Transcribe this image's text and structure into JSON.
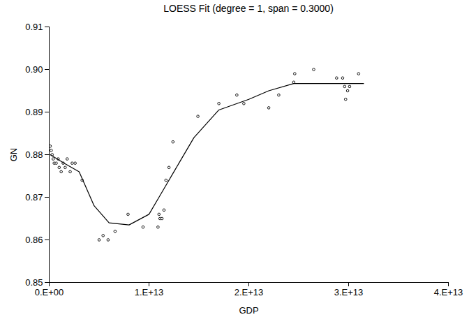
{
  "chart_data": {
    "type": "scatter",
    "title": "LOESS Fit (degree = 1, span = 0.3000)",
    "x_label": "GDP",
    "y_label": "GN",
    "xlim": [
      0,
      40000000000000
    ],
    "xticks": [
      {
        "value": 0,
        "label": "0.E+00"
      },
      {
        "value": 10000000000000,
        "label": "1.E+13"
      },
      {
        "value": 20000000000000,
        "label": "2.E+13"
      },
      {
        "value": 30000000000000,
        "label": "3.E+13"
      },
      {
        "value": 40000000000000,
        "label": "4.E+13"
      }
    ],
    "ylim": [
      0.85,
      0.91
    ],
    "yticks": [
      0.85,
      0.86,
      0.87,
      0.88,
      0.89,
      {
        "value": 0.9,
        "label": "0.90"
      },
      0.91
    ],
    "grid": false,
    "series": [
      {
        "type": "scatter",
        "marker": "circle",
        "color": "#000000",
        "x": [
          100000000000,
          200000000000,
          300000000000,
          400000000000,
          500000000000,
          700000000000,
          900000000000,
          1000000000000,
          1200000000000,
          1400000000000,
          1600000000000,
          1800000000000,
          2100000000000,
          2300000000000,
          2600000000000,
          3300000000000,
          5000000000000,
          5400000000000,
          5900000000000,
          6600000000000,
          7900000000000,
          9400000000000,
          10900000000000,
          11000000000000,
          11100000000000,
          11300000000000,
          11500000000000,
          11700000000000,
          12000000000000,
          12400000000000,
          14900000000000,
          17000000000000,
          18800000000000,
          19500000000000,
          22000000000000,
          23000000000000,
          24500000000000,
          24600000000000,
          26500000000000,
          28800000000000,
          29400000000000,
          29600000000000,
          29700000000000,
          29900000000000,
          30100000000000,
          31000000000000
        ],
        "values": [
          0.882,
          0.881,
          0.88,
          0.879,
          0.878,
          0.878,
          0.879,
          0.877,
          0.876,
          0.878,
          0.877,
          0.879,
          0.876,
          0.878,
          0.878,
          0.874,
          0.86,
          0.861,
          0.86,
          0.862,
          0.866,
          0.863,
          0.863,
          0.866,
          0.865,
          0.865,
          0.867,
          0.874,
          0.877,
          0.883,
          0.889,
          0.892,
          0.894,
          0.892,
          0.891,
          0.894,
          0.897,
          0.899,
          0.9,
          0.898,
          0.898,
          0.896,
          0.893,
          0.895,
          0.896,
          0.899
        ]
      },
      {
        "type": "line",
        "line_style": "solid",
        "color": "#000000",
        "x": [
          100000000000,
          1500000000000,
          3000000000000,
          4500000000000,
          6000000000000,
          8000000000000,
          10000000000000,
          11000000000000,
          12500000000000,
          14500000000000,
          17000000000000,
          20000000000000,
          22000000000000,
          24500000000000,
          31500000000000
        ],
        "values": [
          0.88,
          0.878,
          0.876,
          0.868,
          0.864,
          0.8635,
          0.866,
          0.87,
          0.876,
          0.884,
          0.8905,
          0.893,
          0.895,
          0.8967,
          0.8967
        ]
      }
    ]
  }
}
